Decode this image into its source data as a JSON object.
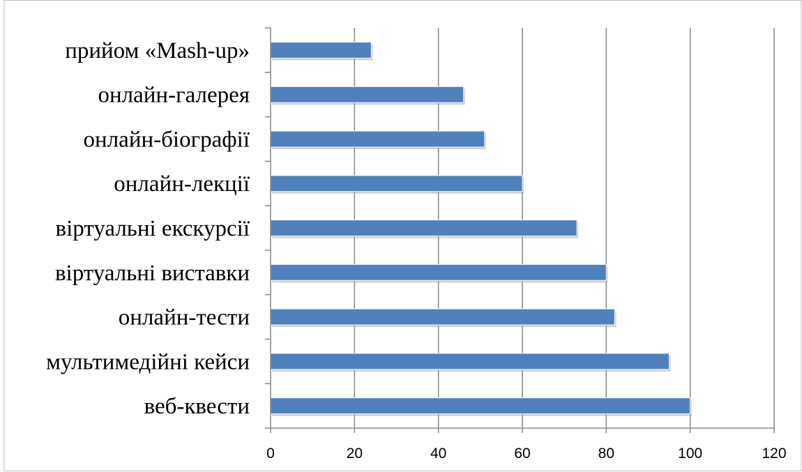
{
  "chart_data": {
    "type": "bar",
    "orientation": "horizontal",
    "categories": [
      "веб-квести",
      "мультимедійні кейси",
      "онлайн-тести",
      "віртуальні виставки",
      "віртуальні екскурсії",
      "онлайн-лекції",
      "онлайн-біографії",
      "онлайн-галерея",
      "прийом «Mash-up»"
    ],
    "values": [
      100,
      95,
      82,
      80,
      73,
      60,
      51,
      46,
      24
    ],
    "xlim": [
      0,
      120
    ],
    "xticks": [
      0,
      20,
      40,
      60,
      80,
      100,
      120
    ],
    "grid": true,
    "legend": "none",
    "bar_color": "#4f81bd",
    "grid_color": "#8c8c8c"
  }
}
